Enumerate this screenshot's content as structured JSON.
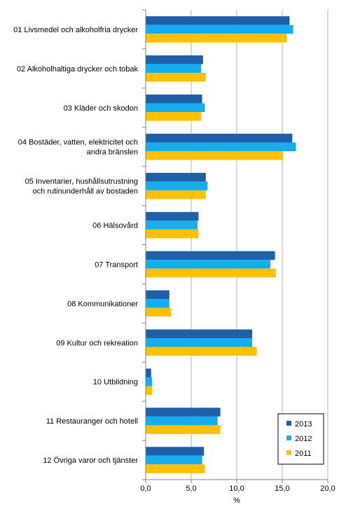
{
  "chart_data": {
    "type": "bar",
    "orientation": "horizontal",
    "categories": [
      "01 Livsmedel och alkoholfria drycker",
      "02 Alkoholhaltiga drycker och tobak",
      "03 Kläder och skodon",
      "04 Bostäder, vatten,  elektricitet och|andra bränslen",
      "05 Inventarier, hushållsutrustning|och rutinunderhåll av bostaden",
      "06 Hälsovård",
      "07 Transport",
      "08 Kommunikationer",
      "09 Kultur och rekreation",
      "10 Utbildning",
      "11 Restauranger och hotell",
      "12 Övriga varor och tjänster"
    ],
    "series": [
      {
        "name": "2013",
        "color": "#1f5fa8",
        "values": [
          15.8,
          6.3,
          6.2,
          16.1,
          6.6,
          5.8,
          14.2,
          2.6,
          11.7,
          0.6,
          8.2,
          6.4
        ]
      },
      {
        "name": "2012",
        "color": "#14aef0",
        "values": [
          16.2,
          6.1,
          6.5,
          16.5,
          6.8,
          5.7,
          13.7,
          2.6,
          11.7,
          0.7,
          7.9,
          6.2
        ]
      },
      {
        "name": "2011",
        "color": "#ffc000",
        "values": [
          15.5,
          6.6,
          6.1,
          15.1,
          6.6,
          5.8,
          14.3,
          2.8,
          12.2,
          0.7,
          8.2,
          6.5
        ]
      }
    ],
    "xlim": [
      0,
      20
    ],
    "xticks": [
      "0,0",
      "5,0",
      "10,0",
      "15,0",
      "20,0"
    ],
    "xlabel": "%",
    "ylabel": "",
    "title": "",
    "grid": "vertical",
    "legend": "bottom-right"
  }
}
